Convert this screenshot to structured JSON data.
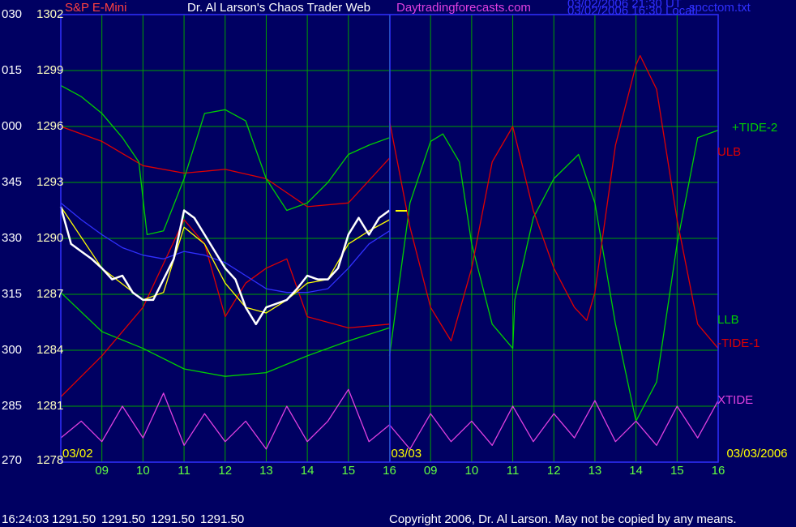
{
  "chart_data": {
    "type": "line",
    "symbol": "S&P E-Mini",
    "title": "Dr. Al Larson's Chaos Trader Web",
    "site": "Daytradingforecasts.com",
    "timestamps": [
      "03/02/2006 21:30 UT",
      "03/02/2006 16:30 Local"
    ],
    "file": "spcctom.txt",
    "xlim": [
      0,
      16
    ],
    "xticks": [
      {
        "value": 1,
        "label": "09"
      },
      {
        "value": 2,
        "label": "10"
      },
      {
        "value": 3,
        "label": "11"
      },
      {
        "value": 4,
        "label": "12"
      },
      {
        "value": 5,
        "label": "13"
      },
      {
        "value": 6,
        "label": "14"
      },
      {
        "value": 7,
        "label": "15"
      },
      {
        "value": 8,
        "label": "16"
      },
      {
        "value": 9,
        "label": "09"
      },
      {
        "value": 10,
        "label": "10"
      },
      {
        "value": 11,
        "label": "11"
      },
      {
        "value": 12,
        "label": "12"
      },
      {
        "value": 13,
        "label": "13"
      },
      {
        "value": 14,
        "label": "14"
      },
      {
        "value": 15,
        "label": "15"
      },
      {
        "value": 16,
        "label": "16"
      }
    ],
    "date_labels": [
      {
        "value": 0,
        "label": "03/02"
      },
      {
        "value": 8,
        "label": "03/03"
      },
      {
        "value": 16,
        "label": "03/03/2006"
      }
    ],
    "ylim": [
      1278,
      1302
    ],
    "yticks": [
      1278,
      1281,
      1284,
      1287,
      1290,
      1293,
      1296,
      1299,
      1302
    ],
    "y2lim": [
      270,
      390
    ],
    "y2ticks": [
      270,
      285,
      300,
      315,
      330,
      345,
      {
        "value": 360,
        "label": "000"
      },
      {
        "value": 375,
        "label": "015"
      },
      {
        "value": 390,
        "label": "030"
      }
    ],
    "grid": true,
    "series": [
      {
        "name": "+TIDE-2",
        "color": "#00d000",
        "x": [
          8,
          8.5,
          9,
          9.3,
          9.7,
          10,
          10.5,
          11,
          11.05,
          11.5,
          12,
          12.6,
          13,
          13.5,
          14,
          14.5,
          15,
          15.5,
          16
        ],
        "values": [
          1283.7,
          1291.9,
          1295.2,
          1295.6,
          1294.1,
          1289.7,
          1285.4,
          1284.1,
          1286.7,
          1291.1,
          1293.2,
          1294.5,
          1291.9,
          1285.4,
          1280.2,
          1282.3,
          1289.7,
          1295.4,
          1295.8
        ]
      },
      {
        "name": "ULB",
        "color": "#e00000",
        "x": [
          0,
          1,
          2,
          3,
          4,
          5,
          6,
          7,
          8
        ],
        "values": [
          1296.0,
          1295.2,
          1293.9,
          1293.5,
          1293.7,
          1293.2,
          1291.7,
          1291.9,
          1294.3
        ]
      },
      {
        "name": "LLB",
        "color": "#00d000",
        "x": [
          0,
          1,
          2,
          3,
          4,
          5,
          6,
          7,
          8
        ],
        "values": [
          1287.1,
          1285.0,
          1284.1,
          1283.0,
          1282.6,
          1282.8,
          1283.7,
          1284.5,
          1285.2
        ]
      },
      {
        "name": "-TIDE-1",
        "color": "#e00000",
        "x": [
          8,
          8.5,
          9,
          9.5,
          10,
          10.5,
          11,
          11.5,
          12,
          12.5,
          12.8,
          13,
          13.5,
          14,
          14.1,
          14.5,
          15,
          15.5,
          16
        ],
        "values": [
          1296.3,
          1290.6,
          1286.3,
          1284.5,
          1288.4,
          1294.1,
          1296.0,
          1291.5,
          1288.4,
          1286.3,
          1285.6,
          1287.1,
          1295.0,
          1299.3,
          1299.8,
          1298.0,
          1291.0,
          1285.4,
          1284.1
        ]
      },
      {
        "name": "XTIDE",
        "color": "#e040e0",
        "x": [
          0,
          0.5,
          1,
          1.5,
          2,
          2.5,
          3,
          3.5,
          4,
          4.5,
          5,
          5.5,
          6,
          6.5,
          7,
          7.5,
          8,
          8.5,
          9,
          9.5,
          10,
          10.5,
          11,
          11.5,
          12,
          12.5,
          13,
          13.5,
          14,
          14.5,
          15,
          15.5,
          16
        ],
        "values": [
          1279.3,
          1280.2,
          1279.1,
          1281.0,
          1279.3,
          1281.7,
          1278.9,
          1280.6,
          1279.1,
          1280.2,
          1278.7,
          1281.0,
          1279.1,
          1280.2,
          1281.9,
          1279.1,
          1280.0,
          1278.7,
          1280.6,
          1279.1,
          1280.2,
          1278.9,
          1281.0,
          1279.1,
          1280.6,
          1279.3,
          1281.3,
          1279.1,
          1280.2,
          1278.9,
          1281.0,
          1279.3,
          1281.3
        ]
      },
      {
        "color": "#00d000",
        "x": [
          0,
          0.5,
          1,
          1.5,
          1.9,
          2.1,
          2.5,
          3,
          3.5,
          4,
          4.5,
          5,
          5.5,
          6,
          6.5,
          7,
          7.5,
          8
        ],
        "values": [
          1298.2,
          1297.6,
          1296.7,
          1295.4,
          1294.1,
          1290.2,
          1290.4,
          1293.2,
          1296.7,
          1296.9,
          1296.3,
          1293.2,
          1291.5,
          1291.9,
          1293.0,
          1294.5,
          1295.0,
          1295.4
        ]
      },
      {
        "color": "#e00000",
        "x": [
          0,
          1,
          2,
          3,
          3.5,
          4,
          4.5,
          5,
          5.5,
          6,
          7,
          8
        ],
        "values": [
          1281.5,
          1283.7,
          1286.3,
          1291.0,
          1289.7,
          1285.8,
          1287.6,
          1288.4,
          1288.9,
          1285.8,
          1285.2,
          1285.4
        ]
      },
      {
        "color": "#3030ff",
        "x": [
          0,
          0.5,
          1,
          1.5,
          2,
          2.5,
          3,
          3.5,
          4,
          4.5,
          5,
          5.5,
          6,
          6.5,
          7,
          7.5,
          8
        ],
        "values": [
          1291.9,
          1291.0,
          1290.2,
          1289.5,
          1289.1,
          1288.9,
          1289.3,
          1289.1,
          1288.7,
          1288.0,
          1287.3,
          1287.1,
          1287.1,
          1287.3,
          1288.4,
          1289.7,
          1290.4
        ]
      },
      {
        "color": "#ffff00",
        "x": [
          0,
          1,
          2,
          2.5,
          3,
          3.5,
          4,
          4.5,
          5,
          5.5,
          6,
          6.5,
          7,
          7.5,
          8
        ],
        "values": [
          1291.7,
          1288.4,
          1286.7,
          1287.1,
          1290.6,
          1289.7,
          1287.6,
          1286.3,
          1286.0,
          1286.7,
          1287.6,
          1287.8,
          1289.7,
          1290.4,
          1291.0
        ]
      },
      {
        "color": "#ffffff",
        "x": [
          0,
          0.25,
          0.5,
          0.75,
          1,
          1.25,
          1.5,
          1.75,
          2,
          2.25,
          2.5,
          2.75,
          3,
          3.25,
          3.5,
          3.75,
          4,
          4.25,
          4.5,
          4.75,
          5,
          5.25,
          5.5,
          5.75,
          6,
          6.25,
          6.5,
          6.75,
          7,
          7.25,
          7.5,
          7.75,
          8
        ],
        "values": [
          1291.7,
          1289.7,
          1289.3,
          1288.9,
          1288.4,
          1287.8,
          1288.0,
          1287.1,
          1286.7,
          1286.7,
          1287.8,
          1288.9,
          1291.5,
          1291.1,
          1290.2,
          1289.3,
          1288.4,
          1287.8,
          1286.3,
          1285.4,
          1286.3,
          1286.5,
          1286.7,
          1287.3,
          1288.0,
          1287.8,
          1287.8,
          1288.4,
          1290.2,
          1291.1,
          1290.2,
          1291.1,
          1291.5
        ]
      }
    ],
    "status_time": "16:24:03",
    "status_prices": [
      "1291.50",
      "1291.50",
      "1291.50",
      "1291.50"
    ],
    "copyright": "Copyright 2006, Dr. Al Larson. May not be copied by any means."
  }
}
